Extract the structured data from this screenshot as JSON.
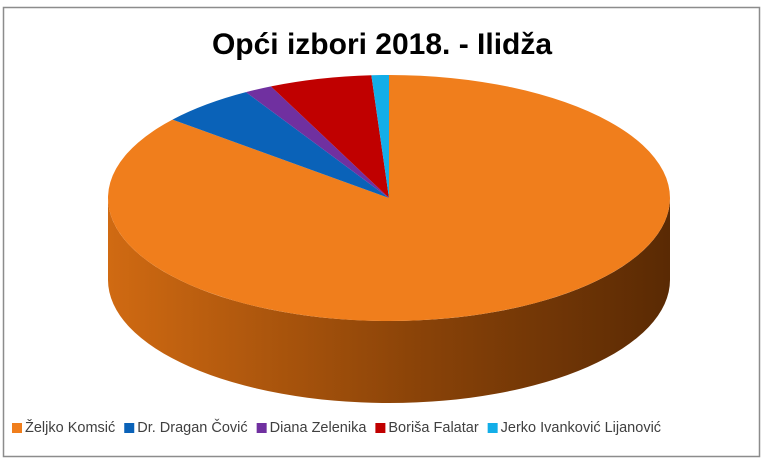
{
  "chart_data": {
    "type": "pie",
    "title": "Opći izbori 2018. - Ilidža",
    "categories": [
      "Željko Komsić",
      "Dr. Dragan Čović",
      "Diana Zelenika",
      "Boriša Falatar",
      "Jerko Ivanković Lijanović"
    ],
    "values": [
      86,
      5.5,
      1.6,
      5.9,
      1.0
    ],
    "colors": [
      "#f07e1c",
      "#0a62b8",
      "#7030a0",
      "#c00000",
      "#13aee8"
    ],
    "legend": "bottom"
  }
}
